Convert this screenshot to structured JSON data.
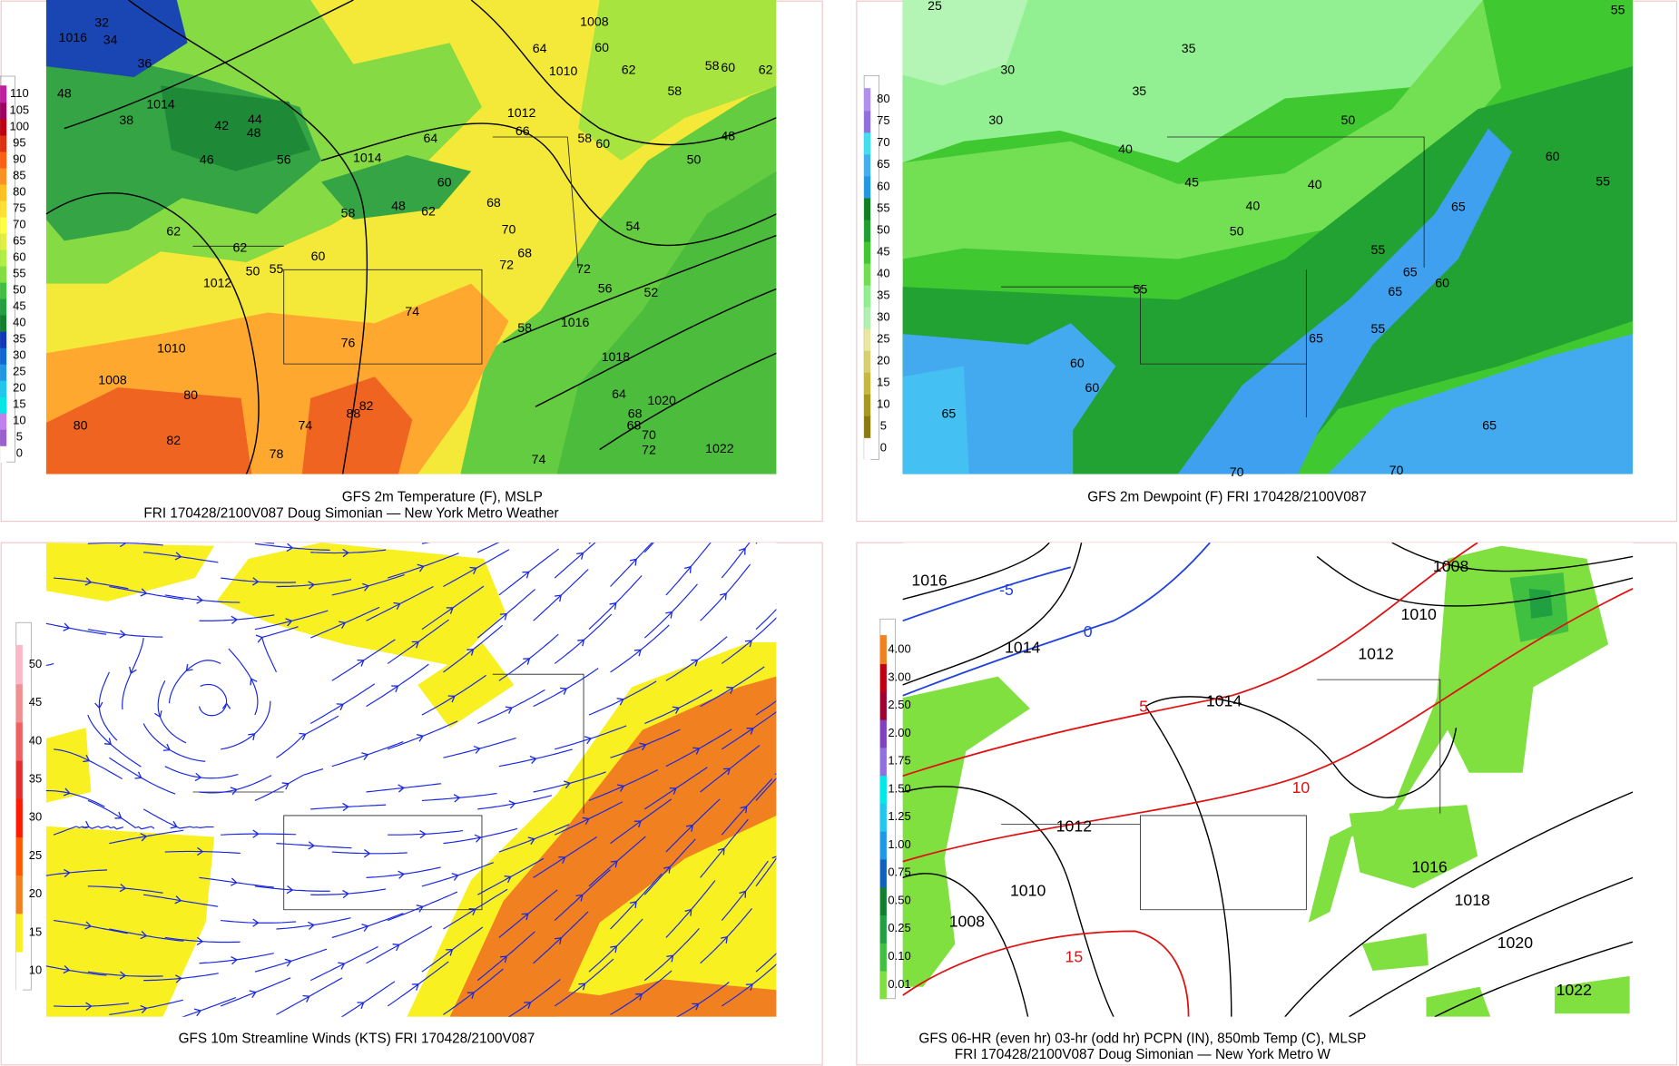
{
  "panels": [
    {
      "caption": [
        "GFS 2m Temperature (F), MSLP",
        "FRI 170428/2100V087 Doug Simonian — New York Metro Weather"
      ],
      "colorbar": {
        "labels": [
          "0",
          "5",
          "10",
          "15",
          "20",
          "25",
          "30",
          "35",
          "40",
          "45",
          "50",
          "55",
          "60",
          "65",
          "70",
          "75",
          "80",
          "85",
          "90",
          "95",
          "100",
          "105",
          "110"
        ],
        "colors": [
          "#ffffff",
          "#9a60d0",
          "#c080f0",
          "#00e8e8",
          "#20c8f0",
          "#2098e8",
          "#1068d8",
          "#1038b8",
          "#108030",
          "#20a040",
          "#40c040",
          "#80e040",
          "#b0f040",
          "#e0f040",
          "#ffff40",
          "#ffe030",
          "#ffc020",
          "#ff9020",
          "#ff6010",
          "#e03010",
          "#c00010",
          "#a00060",
          "#c020a0"
        ]
      },
      "labels": [
        "1016",
        "32",
        "34",
        "36",
        "48",
        "1014",
        "38",
        "42",
        "44",
        "46",
        "48",
        "56",
        "1014",
        "64",
        "60",
        "58",
        "62",
        "48",
        "62",
        "62",
        "50",
        "55",
        "60",
        "1012",
        "74",
        "76",
        "1010",
        "1008",
        "80",
        "82",
        "80",
        "88",
        "82",
        "74",
        "78",
        "72",
        "70",
        "68",
        "68",
        "72",
        "58",
        "1016",
        "1018",
        "1020",
        "64",
        "68",
        "68",
        "70",
        "72",
        "1022",
        "74",
        "54",
        "52",
        "56",
        "50",
        "48",
        "58",
        "62",
        "60",
        "1010",
        "64",
        "1008",
        "1012",
        "66",
        "58",
        "60",
        "58",
        "60",
        "62"
      ]
    },
    {
      "caption": [
        "GFS 2m Dewpoint (F)   FRI 170428/2100V087"
      ],
      "colorbar": {
        "labels": [
          "0",
          "5",
          "10",
          "15",
          "20",
          "25",
          "30",
          "35",
          "40",
          "45",
          "50",
          "55",
          "60",
          "65",
          "70",
          "75",
          "80"
        ],
        "colors": [
          "#ffffff",
          "#8a7a10",
          "#a89820",
          "#c8b840",
          "#d8d070",
          "#e8e8a0",
          "#b0f0b0",
          "#90f090",
          "#70e050",
          "#40c830",
          "#20a030",
          "#108020",
          "#2098e8",
          "#40b0f0",
          "#40e0f0",
          "#9070e0",
          "#b090f0"
        ]
      },
      "labels": [
        "25",
        "35",
        "30",
        "35",
        "30",
        "40",
        "45",
        "40",
        "40",
        "50",
        "50",
        "55",
        "55",
        "60",
        "60",
        "65",
        "65",
        "65",
        "65",
        "60",
        "65",
        "55",
        "65",
        "70",
        "70",
        "60",
        "55",
        "55"
      ]
    },
    {
      "caption": [
        "GFS 10m Streamline Winds (KTS)   FRI 170428/2100V087"
      ],
      "colorbar": {
        "labels": [
          "10",
          "15",
          "20",
          "25",
          "30",
          "35",
          "40",
          "45",
          "50"
        ],
        "colors": [
          "#ffffff",
          "#f8f020",
          "#f08020",
          "#ff5a00",
          "#ff1a00",
          "#e03030",
          "#f06060",
          "#f09090",
          "#ffb8c8"
        ]
      },
      "labels": []
    },
    {
      "caption": [
        "GFS 06-HR (even hr) 03-hr (odd hr) PCPN (IN), 850mb Temp (C), MLSP",
        "FRI 170428/2100V087 Doug Simonian — New York Metro W"
      ],
      "colorbar": {
        "labels": [
          "0.01",
          "0.10",
          "0.25",
          "0.50",
          "0.75",
          "1.00",
          "1.25",
          "1.50",
          "1.75",
          "2.00",
          "2.50",
          "3.00",
          "4.00"
        ],
        "colors": [
          "#80e040",
          "#40c040",
          "#20a040",
          "#108030",
          "#1060c0",
          "#2098e8",
          "#20c8f0",
          "#00e8e8",
          "#9070e0",
          "#8040c0",
          "#a00030",
          "#c00010",
          "#f08020"
        ]
      },
      "labels": [
        "1016",
        "-5",
        "0",
        "1014",
        "1008",
        "1010",
        "1012",
        "5",
        "1014",
        "10",
        "1012",
        "1010",
        "1008",
        "15",
        "1016",
        "1018",
        "1020",
        "1022"
      ]
    }
  ]
}
